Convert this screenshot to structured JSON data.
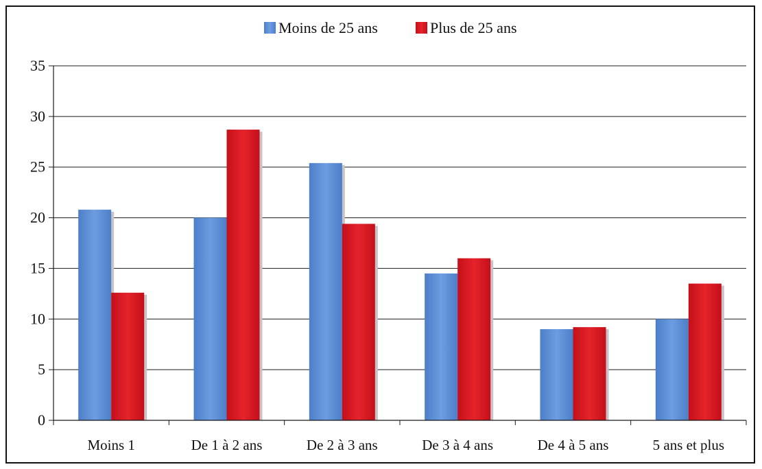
{
  "chart_data": {
    "type": "bar",
    "categories": [
      "Moins 1",
      "De 1 à 2 ans",
      "De 2 à 3 ans",
      "De 3 à 4 ans",
      "De 4 à 5 ans",
      "5 ans et plus"
    ],
    "series": [
      {
        "name": "Moins de 25 ans",
        "color": "#5b8fd6",
        "values": [
          20.8,
          20.0,
          25.4,
          14.5,
          9.0,
          10.0
        ]
      },
      {
        "name": "Plus de 25 ans",
        "color": "#d8141c",
        "values": [
          12.6,
          28.7,
          19.4,
          16.0,
          9.2,
          13.5
        ]
      }
    ],
    "yticks": [
      "0",
      "5",
      "10",
      "15",
      "20",
      "25",
      "30",
      "35"
    ],
    "ylim": [
      0,
      35
    ],
    "grid": true,
    "legend": "top-center",
    "title": "",
    "xlabel": "",
    "ylabel": ""
  }
}
